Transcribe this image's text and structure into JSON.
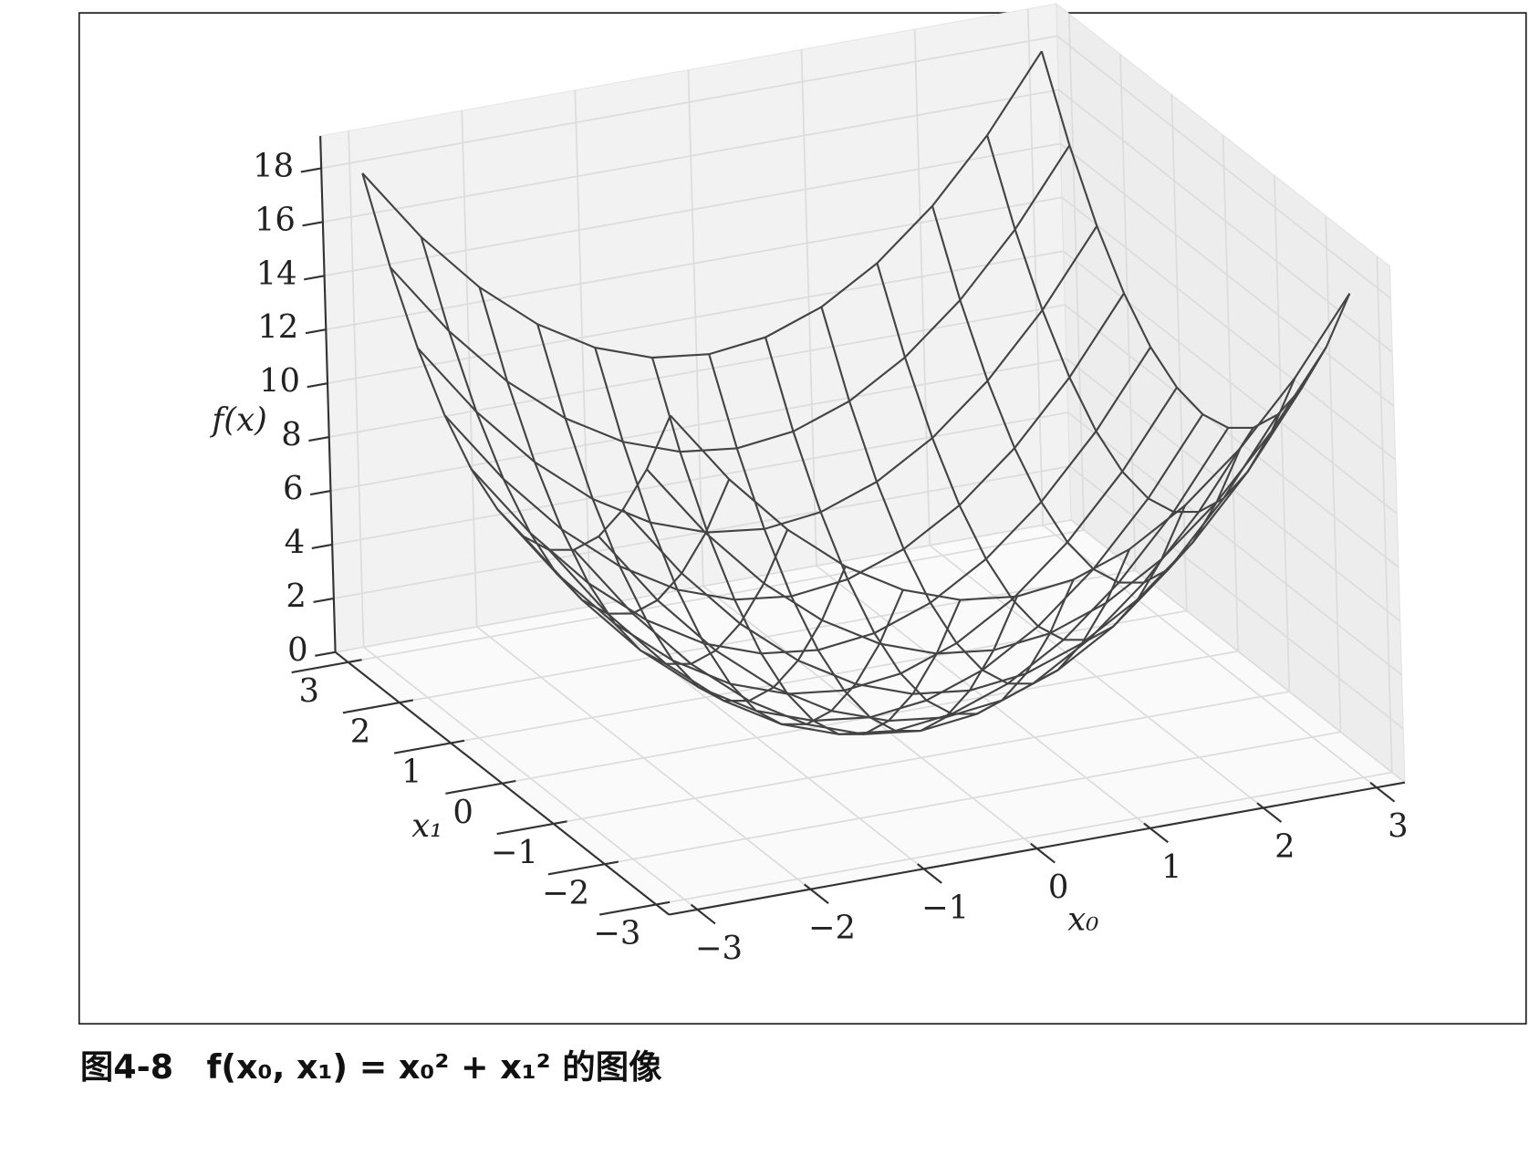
{
  "chart_data": {
    "type": "surface",
    "xlabel": "x₀",
    "ylabel": "x₁",
    "zlabel": "f(x)",
    "color": "#444444",
    "grid": true,
    "xlim": [
      -3,
      3
    ],
    "ylim": [
      -3,
      3
    ],
    "zlim": [
      0,
      18
    ],
    "xticks": [
      {
        "value": -3,
        "label": "−3"
      },
      {
        "value": -2,
        "label": "−2"
      },
      {
        "value": -1,
        "label": "−1"
      },
      0,
      1,
      2,
      3
    ],
    "yticks": [
      {
        "value": -3,
        "label": "−3"
      },
      {
        "value": -2,
        "label": "−2"
      },
      {
        "value": -1,
        "label": "−1"
      },
      0,
      1,
      2,
      3
    ],
    "zticks": [
      0,
      2,
      4,
      6,
      8,
      10,
      12,
      14,
      16,
      18
    ],
    "x": [
      -3,
      -2.5,
      -2,
      -1.5,
      -1,
      -0.5,
      0,
      0.5,
      1,
      1.5,
      2,
      2.5,
      3
    ],
    "y": [
      -3,
      -2.5,
      -2,
      -1.5,
      -1,
      -0.5,
      0,
      0.5,
      1,
      1.5,
      2,
      2.5,
      3
    ],
    "z": [
      [
        18,
        15.25,
        13,
        11.25,
        10,
        9.25,
        9,
        9.25,
        10,
        11.25,
        13,
        15.25,
        18
      ],
      [
        15.25,
        12.5,
        10.25,
        8.5,
        7.25,
        6.5,
        6.25,
        6.5,
        7.25,
        8.5,
        10.25,
        12.5,
        15.25
      ],
      [
        13,
        10.25,
        8,
        6.25,
        5,
        4.25,
        4,
        4.25,
        5,
        6.25,
        8,
        10.25,
        13
      ],
      [
        11.25,
        8.5,
        6.25,
        4.5,
        3.25,
        2.5,
        2.25,
        2.5,
        3.25,
        4.5,
        6.25,
        8.5,
        11.25
      ],
      [
        10,
        7.25,
        5,
        3.25,
        2,
        1.25,
        1,
        1.25,
        2,
        3.25,
        5,
        7.25,
        10
      ],
      [
        9.25,
        6.5,
        4.25,
        2.5,
        1.25,
        0.5,
        0.25,
        0.5,
        1.25,
        2.5,
        4.25,
        6.5,
        9.25
      ],
      [
        9,
        6.25,
        4,
        2.25,
        1,
        0.25,
        0,
        0.25,
        1,
        2.25,
        4,
        6.25,
        9
      ],
      [
        9.25,
        6.5,
        4.25,
        2.5,
        1.25,
        0.5,
        0.25,
        0.5,
        1.25,
        2.5,
        4.25,
        6.5,
        9.25
      ],
      [
        10,
        7.25,
        5,
        3.25,
        2,
        1.25,
        1,
        1.25,
        2,
        3.25,
        5,
        7.25,
        10
      ],
      [
        11.25,
        8.5,
        6.25,
        4.5,
        3.25,
        2.5,
        2.25,
        2.5,
        3.25,
        4.5,
        6.25,
        8.5,
        11.25
      ],
      [
        13,
        10.25,
        8,
        6.25,
        5,
        4.25,
        4,
        4.25,
        5,
        6.25,
        8,
        10.25,
        13
      ],
      [
        15.25,
        12.5,
        10.25,
        8.5,
        7.25,
        6.5,
        6.25,
        6.5,
        7.25,
        8.5,
        10.25,
        12.5,
        15.25
      ],
      [
        18,
        15.25,
        13,
        11.25,
        10,
        9.25,
        9,
        9.25,
        10,
        11.25,
        13,
        15.25,
        18
      ]
    ]
  },
  "figure": {
    "caption": "图4-8　f(x₀, x₁) = x₀² + x₁² 的图像"
  }
}
